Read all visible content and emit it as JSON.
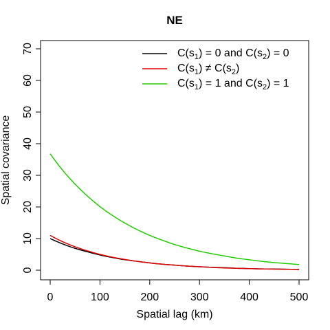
{
  "chart_data": {
    "type": "line",
    "title": "NE",
    "xlabel": "Spatial lag (km)",
    "ylabel": "Spatial covariance",
    "xlim": [
      0,
      500
    ],
    "ylim": [
      0,
      70
    ],
    "xticks": [
      0,
      100,
      200,
      300,
      400,
      500
    ],
    "yticks": [
      0,
      10,
      20,
      30,
      40,
      50,
      60,
      70
    ],
    "grid": false,
    "legend_position": "top-right",
    "x": [
      0,
      25,
      50,
      75,
      100,
      125,
      150,
      175,
      200,
      225,
      250,
      275,
      300,
      325,
      350,
      375,
      400,
      425,
      450,
      475,
      500
    ],
    "series": [
      {
        "name": "C(s1) = 0 and C(s2) = 0",
        "legend": {
          "p1": "C(s",
          "s1": "1",
          "p2": ") = 0 and C(s",
          "s2": "2",
          "p3": ") = 0"
        },
        "color": "#000000",
        "values": [
          10.0,
          8.3,
          6.9,
          5.8,
          4.8,
          4.0,
          3.3,
          2.8,
          2.3,
          1.9,
          1.6,
          1.3,
          1.1,
          0.9,
          0.8,
          0.6,
          0.5,
          0.4,
          0.37,
          0.3,
          0.25
        ]
      },
      {
        "name": "C(s1) ≠ C(s2)",
        "legend": {
          "p1": "C(s",
          "s1": "1",
          "p2": ") ≠ C(s",
          "s2": "2",
          "p3": ")"
        },
        "color": "#df0000",
        "values": [
          11.0,
          9.0,
          7.4,
          6.1,
          5.0,
          4.1,
          3.4,
          2.8,
          2.3,
          1.9,
          1.6,
          1.3,
          1.1,
          0.9,
          0.7,
          0.6,
          0.5,
          0.4,
          0.34,
          0.28,
          0.23
        ]
      },
      {
        "name": "C(s1) = 1 and C(s2) = 1",
        "legend": {
          "p1": "C(s",
          "s1": "1",
          "p2": ") = 1 and C(s",
          "s2": "2",
          "p3": ") = 1"
        },
        "color": "#22cc00",
        "values": [
          36.8,
          31.6,
          27.2,
          23.4,
          20.1,
          17.3,
          14.9,
          12.8,
          11.0,
          9.5,
          8.1,
          7.0,
          6.0,
          5.2,
          4.5,
          3.8,
          3.3,
          2.8,
          2.4,
          2.1,
          1.8
        ]
      }
    ]
  }
}
